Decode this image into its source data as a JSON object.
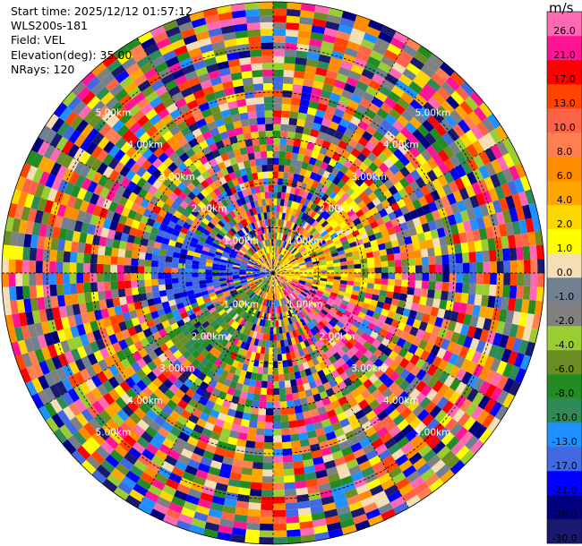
{
  "info": {
    "start_time": "Start time: 2025/12/12 01:57:12",
    "instrument": "WLS200s-181",
    "field": "Field: VEL",
    "elevation": "Elevation(deg): 35.00",
    "nrays": "NRays: 120"
  },
  "colorbar": {
    "unit": "m/s",
    "colors": [
      "#191970",
      "#000080",
      "#0000ff",
      "#4169e1",
      "#1e90ff",
      "#2e8b57",
      "#228b22",
      "#6b8e23",
      "#9acd32",
      "#808080",
      "#708090",
      "#f5deb3",
      "#ffff00",
      "#ffd700",
      "#ffa500",
      "#ff8c00",
      "#ff7f50",
      "#ff6347",
      "#ff4500",
      "#ff0000",
      "#ff1493",
      "#ff69b4"
    ],
    "tick_labels": [
      "-30.0",
      "-26.0",
      "-21.0",
      "-17.0",
      "-13.0",
      "-10.0",
      "-8.0",
      "-6.0",
      "-4.0",
      "-2.0",
      "-1.0",
      "0.0",
      "1.0",
      "2.0",
      "4.0",
      "6.0",
      "8.0",
      "10.0",
      "13.0",
      "17.0",
      "21.0",
      "26.0"
    ]
  },
  "chart_data": {
    "type": "heatmap",
    "title": "",
    "field": "VEL",
    "units": "m/s",
    "projection": "polar (PPI)",
    "n_rays": 120,
    "elevation_deg": 35.0,
    "max_range_km": 6.0,
    "range_rings_km": [
      1.0,
      2.0,
      3.0,
      4.0,
      5.0
    ],
    "ring_labels": [
      "1.00km",
      "2.00km",
      "3.00km",
      "4.00km",
      "5.00km"
    ],
    "value_range": [
      -30.0,
      30.0
    ],
    "n_range_gates": 40,
    "grid": true
  }
}
